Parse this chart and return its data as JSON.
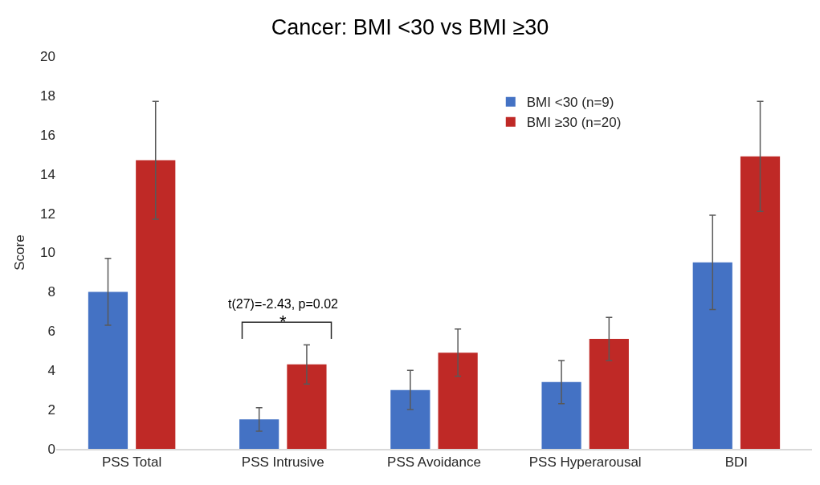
{
  "chart_data": {
    "type": "bar",
    "title": "Cancer: BMI <30 vs BMI ≥30",
    "ylabel": "Score",
    "categories": [
      "PSS Total",
      "PSS Intrusive",
      "PSS Avoidance",
      "PSS Hyperarousal",
      "BDI"
    ],
    "series": [
      {
        "name": "BMI <30 (n=9)",
        "color": "#4472c4",
        "values": [
          8.0,
          1.5,
          3.0,
          3.4,
          9.5
        ],
        "errors": [
          1.7,
          0.6,
          1.0,
          1.1,
          2.4
        ]
      },
      {
        "name": "BMI ≥30 (n=20)",
        "color": "#bf2926",
        "values": [
          14.7,
          4.3,
          4.9,
          5.6,
          14.9
        ],
        "errors": [
          3.0,
          1.0,
          1.2,
          1.1,
          2.8
        ]
      }
    ],
    "ylim": [
      0,
      20
    ],
    "yticks": [
      0,
      2,
      4,
      6,
      8,
      10,
      12,
      14,
      16,
      18,
      20
    ],
    "grid": false,
    "legend": "top right",
    "annotations": [
      "t(27)=-2.43, p=0.02",
      "*"
    ]
  }
}
